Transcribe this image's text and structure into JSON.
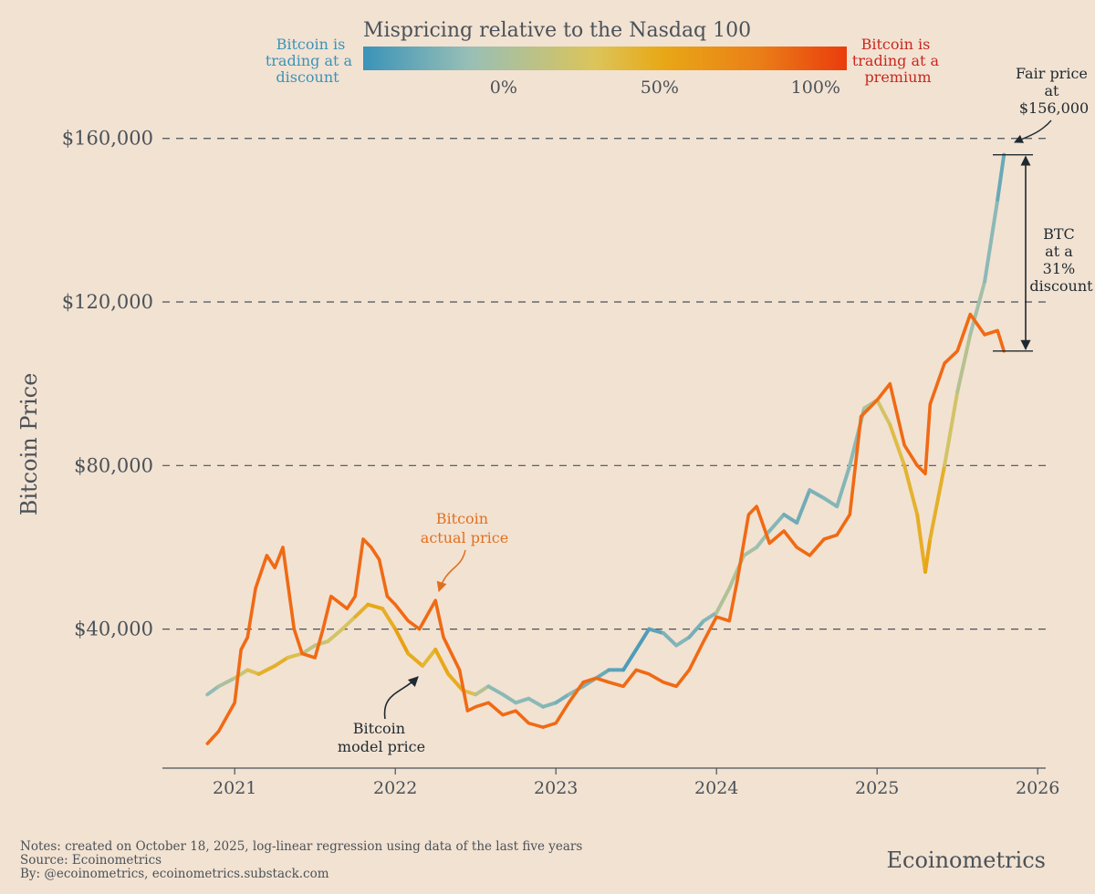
{
  "chart_data": {
    "type": "line",
    "colorbar": {
      "title": "Mispricing relative to the Nasdaq 100",
      "left_label": [
        "Bitcoin is",
        "trading at a",
        "discount"
      ],
      "right_label": [
        "Bitcoin is",
        "trading at a",
        "premium"
      ],
      "ticks": [
        "0%",
        "50%",
        "100%"
      ],
      "tick_values": [
        0,
        50,
        100
      ],
      "range": [
        -45,
        110
      ],
      "colors": [
        "#3a93b8",
        "#98bfb6",
        "#dcc45a",
        "#e8a816",
        "#ea7e18",
        "#ea3c0c"
      ]
    },
    "ylabel": "Bitcoin Price",
    "ylim": [
      6000,
      176000
    ],
    "yticks": [
      40000,
      80000,
      120000,
      160000
    ],
    "ytick_labels": [
      "$40,000",
      "$80,000",
      "$120,000",
      "$160,000"
    ],
    "xlim": [
      2020.55,
      2026.05
    ],
    "xticks": [
      2021,
      2022,
      2023,
      2024,
      2025,
      2026
    ],
    "xtick_labels": [
      "2021",
      "2022",
      "2023",
      "2024",
      "2025",
      "2026"
    ],
    "series": [
      {
        "name": "Bitcoin model price",
        "x": [
          2020.83,
          2020.9,
          2021.0,
          2021.08,
          2021.15,
          2021.25,
          2021.33,
          2021.42,
          2021.5,
          2021.58,
          2021.67,
          2021.75,
          2021.83,
          2021.92,
          2022.0,
          2022.08,
          2022.17,
          2022.25,
          2022.33,
          2022.42,
          2022.5,
          2022.58,
          2022.67,
          2022.75,
          2022.83,
          2022.92,
          2023.0,
          2023.08,
          2023.17,
          2023.25,
          2023.33,
          2023.42,
          2023.5,
          2023.58,
          2023.67,
          2023.75,
          2023.83,
          2023.92,
          2024.0,
          2024.08,
          2024.17,
          2024.25,
          2024.33,
          2024.42,
          2024.5,
          2024.58,
          2024.67,
          2024.75,
          2024.83,
          2024.92,
          2025.0,
          2025.08,
          2025.17,
          2025.25,
          2025.3,
          2025.33,
          2025.42,
          2025.5,
          2025.58,
          2025.67,
          2025.75,
          2025.79
        ],
        "values": [
          24000,
          26000,
          28000,
          30000,
          29000,
          31000,
          33000,
          34000,
          36000,
          37000,
          40000,
          43000,
          46000,
          45000,
          40000,
          34000,
          31000,
          35000,
          29000,
          25000,
          24000,
          26000,
          24000,
          22000,
          23000,
          21000,
          22000,
          24000,
          26000,
          28000,
          30000,
          30000,
          35000,
          40000,
          39000,
          36000,
          38000,
          42000,
          44000,
          50000,
          58000,
          60000,
          64000,
          68000,
          66000,
          74000,
          72000,
          70000,
          80000,
          94000,
          96000,
          90000,
          80000,
          68000,
          54000,
          62000,
          80000,
          98000,
          112000,
          125000,
          145000,
          156000
        ],
        "pricing": [
          -15,
          -10,
          10,
          20,
          40,
          45,
          40,
          20,
          0,
          25,
          15,
          30,
          55,
          45,
          45,
          65,
          30,
          45,
          55,
          40,
          20,
          -10,
          -20,
          -10,
          -20,
          -10,
          -25,
          -20,
          -10,
          -30,
          -25,
          -40,
          -35,
          -40,
          -25,
          -15,
          -20,
          -25,
          -10,
          15,
          -10,
          5,
          -20,
          -15,
          -35,
          -15,
          -25,
          -10,
          -25,
          -5,
          10,
          30,
          35,
          45,
          45,
          60,
          25,
          15,
          -5,
          -5,
          -25,
          -30
        ]
      },
      {
        "name": "Bitcoin actual price",
        "x": [
          2020.83,
          2020.9,
          2021.0,
          2021.04,
          2021.08,
          2021.13,
          2021.2,
          2021.25,
          2021.3,
          2021.37,
          2021.42,
          2021.5,
          2021.55,
          2021.6,
          2021.7,
          2021.75,
          2021.8,
          2021.85,
          2021.9,
          2021.95,
          2022.0,
          2022.08,
          2022.15,
          2022.25,
          2022.3,
          2022.4,
          2022.45,
          2022.5,
          2022.58,
          2022.67,
          2022.75,
          2022.83,
          2022.92,
          2023.0,
          2023.08,
          2023.17,
          2023.25,
          2023.33,
          2023.42,
          2023.5,
          2023.58,
          2023.67,
          2023.75,
          2023.83,
          2023.92,
          2024.0,
          2024.08,
          2024.13,
          2024.2,
          2024.25,
          2024.33,
          2024.42,
          2024.5,
          2024.58,
          2024.67,
          2024.75,
          2024.83,
          2024.9,
          2025.0,
          2025.08,
          2025.17,
          2025.25,
          2025.3,
          2025.33,
          2025.42,
          2025.5,
          2025.58,
          2025.67,
          2025.75,
          2025.79
        ],
        "values": [
          12000,
          15000,
          22000,
          35000,
          38000,
          50000,
          58000,
          55000,
          60000,
          40000,
          34000,
          33000,
          40000,
          48000,
          45000,
          48000,
          62000,
          60000,
          57000,
          48000,
          46000,
          42000,
          40000,
          47000,
          38000,
          30000,
          20000,
          21000,
          22000,
          19000,
          20000,
          17000,
          16000,
          17000,
          22000,
          27000,
          28000,
          27000,
          26000,
          30000,
          29000,
          27000,
          26000,
          30000,
          37000,
          43000,
          42000,
          52000,
          68000,
          70000,
          61000,
          64000,
          60000,
          58000,
          62000,
          63000,
          68000,
          92000,
          96000,
          100000,
          85000,
          80000,
          78000,
          95000,
          105000,
          108000,
          117000,
          112000,
          113000,
          108000
        ]
      }
    ],
    "annotations": {
      "actual_label": [
        "Bitcoin",
        "actual price"
      ],
      "model_label": [
        "Bitcoin",
        "model price"
      ],
      "fair_label": [
        "Fair price",
        "at",
        "$156,000"
      ],
      "discount_label": [
        "BTC",
        "at a",
        "31%",
        "discount"
      ],
      "fair_value": 156000,
      "current_value": 108000
    },
    "colors": {
      "actual": "#f06a14",
      "text_dark": "#1f2a30",
      "text_axis": "#4a5258",
      "discount_text": "#3a93b8",
      "premium_text": "#c8281e",
      "actual_text": "#e07020"
    }
  },
  "footer": {
    "notes": "Notes: created on October 18, 2025, log-linear regression using data of the last five years",
    "source": "Source: Ecoinometrics",
    "by": "By: @ecoinometrics, ecoinometrics.substack.com",
    "brand": "Ecoinometrics"
  }
}
